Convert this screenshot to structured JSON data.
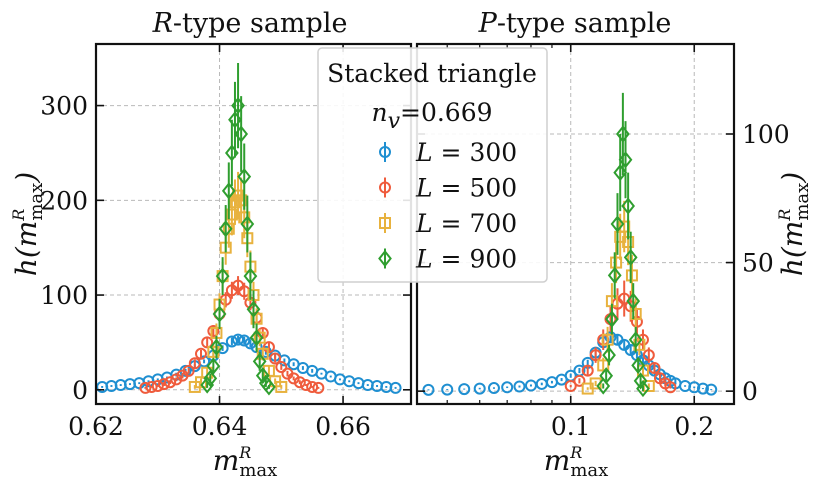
{
  "colors": {
    "L300": "#1f8fd1",
    "L500": "#ef5b3c",
    "L700": "#e8b23e",
    "L900": "#2f9e2f",
    "grid": "#b9b9b9",
    "axis": "#111111"
  },
  "legend": {
    "title": "Stacked triangle",
    "param_symbol": "n",
    "param_sub": "v",
    "param_value": "=0.669",
    "entries": [
      {
        "var": "L",
        "text": " = 300",
        "marker": "circle",
        "color": "#1f8fd1"
      },
      {
        "var": "L",
        "text": " = 500",
        "marker": "circle",
        "color": "#ef5b3c"
      },
      {
        "var": "L",
        "text": " = 700",
        "marker": "square",
        "color": "#e8b23e"
      },
      {
        "var": "L",
        "text": " = 900",
        "marker": "diamond",
        "color": "#2f9e2f"
      }
    ]
  },
  "chart_data": [
    {
      "type": "scatter",
      "title_symbol": "R",
      "title": "-type sample",
      "xlabel": "m",
      "xlabel_sub": "max",
      "xlabel_sup": "R",
      "ylabel": "h(m",
      "ylabel_sub": "max",
      "ylabel_sup": "R",
      "ylabel_close": ")",
      "xscale": "linear",
      "xlim": [
        0.62,
        0.671
      ],
      "ylim": [
        -15,
        365
      ],
      "xticks": [
        0.62,
        0.64,
        0.66
      ],
      "xtick_labels": [
        "0.62",
        "0.64",
        "0.66"
      ],
      "yticks": [
        0,
        100,
        200,
        300
      ],
      "ytick_labels": [
        "0",
        "100",
        "200",
        "300"
      ],
      "y_axis_side": "left",
      "grid": true,
      "series": [
        {
          "name": "L = 300",
          "x": [
            0.621,
            0.6225,
            0.624,
            0.6255,
            0.627,
            0.6285,
            0.63,
            0.6315,
            0.633,
            0.6345,
            0.636,
            0.6375,
            0.639,
            0.6405,
            0.642,
            0.643,
            0.644,
            0.645,
            0.646,
            0.6475,
            0.649,
            0.6505,
            0.652,
            0.6535,
            0.655,
            0.6565,
            0.658,
            0.6595,
            0.661,
            0.6625,
            0.664,
            0.6655,
            0.667,
            0.6685
          ],
          "y": [
            3,
            4,
            5,
            6,
            7,
            9,
            11,
            13,
            16,
            20,
            25,
            30,
            36,
            44,
            51,
            53,
            52,
            49,
            45,
            40,
            36,
            31,
            27,
            23,
            20,
            17,
            14,
            11,
            9,
            7,
            5,
            4,
            3,
            2
          ],
          "err": [
            1,
            1,
            1,
            1,
            1,
            1,
            1,
            1,
            2,
            2,
            2,
            2,
            3,
            3,
            4,
            4,
            4,
            4,
            3,
            3,
            3,
            2,
            2,
            2,
            2,
            1,
            1,
            1,
            1,
            1,
            1,
            1,
            1,
            1
          ]
        },
        {
          "name": "L = 500",
          "x": [
            0.628,
            0.629,
            0.63,
            0.631,
            0.632,
            0.633,
            0.634,
            0.635,
            0.636,
            0.637,
            0.638,
            0.639,
            0.64,
            0.641,
            0.642,
            0.643,
            0.644,
            0.645,
            0.646,
            0.647,
            0.648,
            0.649,
            0.65,
            0.651,
            0.652,
            0.653,
            0.654,
            0.655,
            0.656
          ],
          "y": [
            2,
            3,
            4,
            6,
            8,
            11,
            15,
            20,
            28,
            38,
            50,
            62,
            80,
            95,
            105,
            110,
            104,
            92,
            76,
            60,
            45,
            33,
            24,
            17,
            12,
            8,
            5,
            3,
            2
          ],
          "err": [
            1,
            1,
            1,
            2,
            2,
            2,
            3,
            3,
            4,
            4,
            5,
            6,
            7,
            8,
            9,
            10,
            9,
            8,
            7,
            6,
            5,
            4,
            3,
            3,
            2,
            2,
            1,
            1,
            1
          ]
        },
        {
          "name": "L = 700",
          "x": [
            0.636,
            0.637,
            0.638,
            0.639,
            0.6395,
            0.64,
            0.6405,
            0.641,
            0.6415,
            0.642,
            0.6425,
            0.643,
            0.6435,
            0.644,
            0.6445,
            0.645,
            0.6455,
            0.646,
            0.6465,
            0.647,
            0.648,
            0.649,
            0.65
          ],
          "y": [
            3,
            8,
            18,
            40,
            60,
            90,
            120,
            150,
            170,
            185,
            198,
            205,
            200,
            182,
            160,
            130,
            100,
            75,
            55,
            38,
            20,
            9,
            3
          ],
          "err": [
            2,
            4,
            6,
            8,
            10,
            12,
            15,
            18,
            20,
            22,
            24,
            25,
            24,
            22,
            20,
            17,
            14,
            11,
            9,
            7,
            5,
            3,
            2
          ]
        },
        {
          "name": "L = 900",
          "x": [
            0.638,
            0.6385,
            0.639,
            0.6395,
            0.64,
            0.6405,
            0.641,
            0.6415,
            0.642,
            0.6425,
            0.643,
            0.6435,
            0.644,
            0.6445,
            0.645,
            0.6455,
            0.646,
            0.6465,
            0.647,
            0.6475,
            0.648
          ],
          "y": [
            5,
            12,
            25,
            45,
            80,
            120,
            170,
            210,
            250,
            285,
            300,
            270,
            225,
            175,
            120,
            85,
            55,
            30,
            15,
            7,
            3
          ],
          "err": [
            3,
            5,
            8,
            12,
            16,
            20,
            25,
            30,
            35,
            40,
            45,
            40,
            35,
            30,
            25,
            20,
            15,
            10,
            7,
            4,
            2
          ]
        }
      ]
    },
    {
      "type": "scatter",
      "title_symbol": "P",
      "title": "-type sample",
      "xlabel": "m",
      "xlabel_sub": "max",
      "xlabel_sup": "R",
      "ylabel": "h(m",
      "ylabel_sub": "max",
      "ylabel_sup": "R",
      "ylabel_close": ")",
      "xscale": "log",
      "xlim": [
        0.0422,
        0.25
      ],
      "ylim": [
        -5,
        135
      ],
      "xticks": [
        0.1,
        0.2
      ],
      "xtick_labels": [
        "0.1",
        "0.2"
      ],
      "yticks": [
        0,
        50,
        100
      ],
      "ytick_labels": [
        "0",
        "50",
        "100"
      ],
      "y_axis_side": "right",
      "grid": true,
      "series": [
        {
          "name": "L = 300",
          "x": [
            0.045,
            0.05,
            0.055,
            0.06,
            0.065,
            0.07,
            0.075,
            0.08,
            0.085,
            0.09,
            0.095,
            0.1,
            0.105,
            0.11,
            0.115,
            0.12,
            0.125,
            0.13,
            0.135,
            0.14,
            0.145,
            0.15,
            0.155,
            0.16,
            0.165,
            0.17,
            0.175,
            0.18,
            0.19,
            0.2,
            0.21,
            0.22
          ],
          "y": [
            0.5,
            0.6,
            0.8,
            1,
            1.2,
            1.5,
            1.8,
            2.2,
            2.8,
            3.5,
            4.5,
            6,
            8,
            11,
            15,
            19,
            21,
            20,
            18,
            16,
            14,
            12,
            10,
            8,
            6.5,
            5,
            4,
            3,
            2,
            1.5,
            1,
            0.6
          ],
          "err": [
            0.2,
            0.2,
            0.2,
            0.3,
            0.3,
            0.3,
            0.4,
            0.4,
            0.5,
            0.5,
            0.6,
            0.8,
            1,
            1.2,
            1.5,
            1.8,
            2,
            2,
            1.8,
            1.6,
            1.4,
            1.2,
            1,
            0.9,
            0.8,
            0.6,
            0.5,
            0.4,
            0.3,
            0.3,
            0.2,
            0.2
          ]
        },
        {
          "name": "L = 500",
          "x": [
            0.1,
            0.105,
            0.11,
            0.115,
            0.12,
            0.125,
            0.13,
            0.135,
            0.14,
            0.145,
            0.15,
            0.155,
            0.16,
            0.165,
            0.17,
            0.175
          ],
          "y": [
            2,
            4,
            8,
            14,
            20,
            28,
            34,
            36,
            33,
            27,
            20,
            14,
            9,
            5,
            3,
            1.5
          ],
          "err": [
            0.5,
            1,
            2,
            3,
            4,
            5,
            6,
            7,
            6,
            5,
            4,
            3,
            2,
            1.5,
            1,
            0.5
          ]
        },
        {
          "name": "L = 700",
          "x": [
            0.11,
            0.115,
            0.12,
            0.123,
            0.126,
            0.129,
            0.132,
            0.135,
            0.138,
            0.141,
            0.144,
            0.147,
            0.15,
            0.155
          ],
          "y": [
            1,
            3,
            10,
            20,
            35,
            50,
            60,
            64,
            58,
            45,
            30,
            18,
            8,
            2
          ],
          "err": [
            0.5,
            1,
            3,
            5,
            7,
            8,
            9,
            10,
            9,
            8,
            6,
            4,
            2,
            1
          ]
        },
        {
          "name": "L = 900",
          "x": [
            0.12,
            0.122,
            0.124,
            0.126,
            0.128,
            0.13,
            0.132,
            0.134,
            0.136,
            0.138,
            0.14,
            0.142,
            0.144,
            0.146,
            0.148,
            0.15
          ],
          "y": [
            2,
            6,
            14,
            28,
            45,
            65,
            85,
            100,
            90,
            72,
            52,
            35,
            20,
            10,
            4,
            1
          ],
          "err": [
            1,
            2,
            4,
            6,
            9,
            12,
            15,
            16,
            15,
            13,
            10,
            7,
            5,
            3,
            2,
            1
          ]
        }
      ]
    }
  ]
}
